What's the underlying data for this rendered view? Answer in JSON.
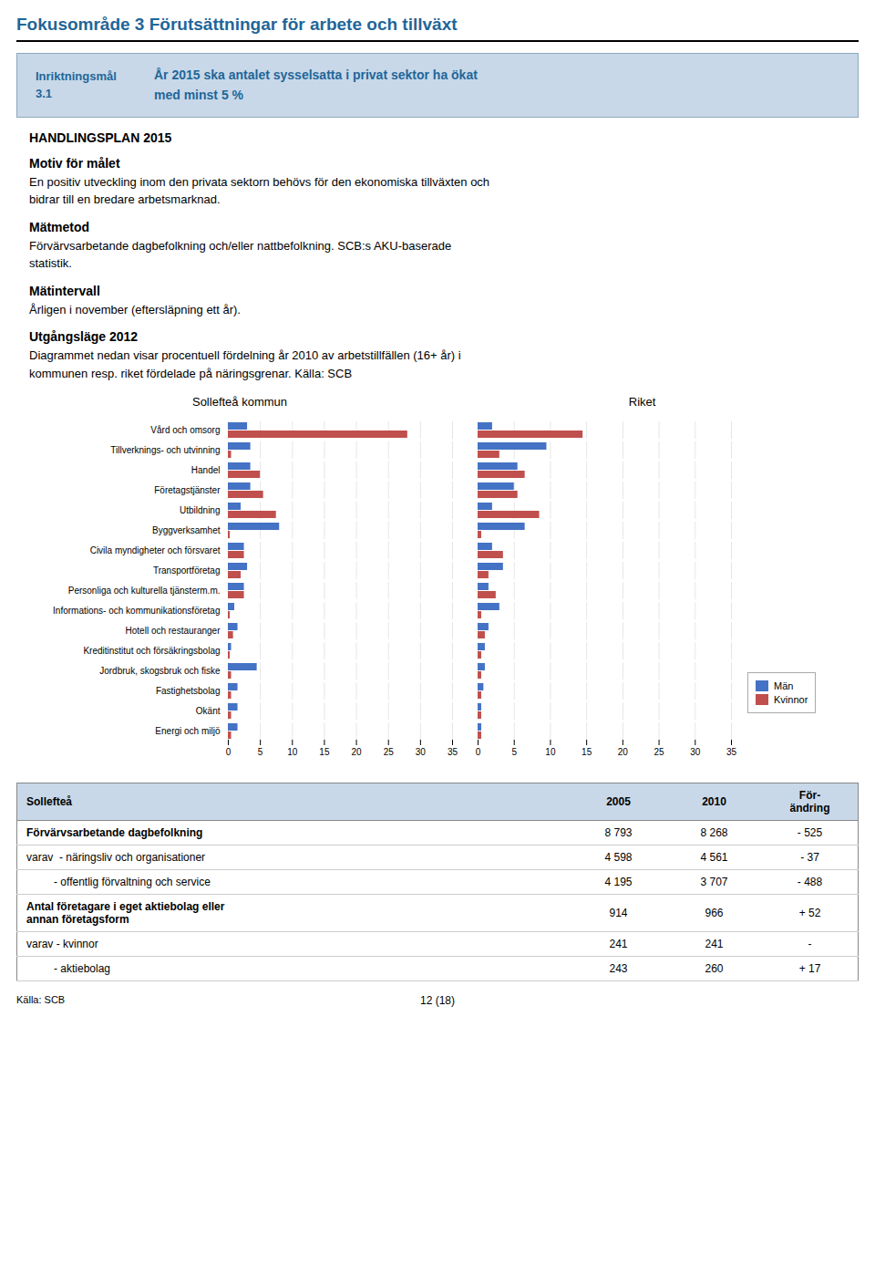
{
  "title": "Fokusområde 3  Förutsättningar för arbete och tillväxt",
  "title_color": "#1F6699",
  "header": {
    "label_lines": [
      "Inriktningsmål",
      "3.1"
    ],
    "text": "År 2015 ska antalet sysselsatta i privat sektor ha ökat\nmed minst 5 %",
    "color": "#C8D8E8",
    "border_color": "#8AAABB"
  },
  "sections": [
    {
      "title": "HANDLINGSPLAN  2015"
    },
    {
      "title": "Motiv för målet",
      "text": "En positiv utveckling inom den privata sektorn behövs för den ekonomiska tillväxten och\nbidrar till en bredare arbetsmarknad."
    },
    {
      "title": "Mätmetod",
      "text": "Förvärvsarbetande dagbefolkning och/eller nattbefolkning. SCB:s AKU-baserade\nstatistik."
    },
    {
      "title": "Mätintervall",
      "text": "Årligen i november (eftersläpning ett år)."
    },
    {
      "title": "Utgångsläge 2012",
      "text": "Diagrammet nedan visar procentuell fördelning år 2010 av arbetstillfällen (16+ år) i\nkommunen resp. riket fördelade på näringsgrenar. Källa: SCB"
    }
  ],
  "chart_data": [
    {
      "type": "bar",
      "orientation": "horizontal",
      "title": "Sollefteå kommun",
      "categories": [
        "Vård och omsorg",
        "Tillverknings- och utvinning",
        "Handel",
        "Företagstjänster",
        "Utbildning",
        "Byggverksamhet",
        "Civila myndigheter och försvaret",
        "Transportföretag",
        "Personliga och kulturella tjänsterm.m.",
        "Informations- och kommunikationsföretag",
        "Hotell och restauranger",
        "Kreditinstitut och försäkringsbolag",
        "Jordbruk, skogsbruk och fiske",
        "Fastighetsbolag",
        "Okänt",
        "Energi och miljö"
      ],
      "series": [
        {
          "name": "Män",
          "color": "#4472C4",
          "values": [
            3.0,
            3.5,
            3.5,
            3.5,
            2.0,
            8.0,
            2.5,
            3.0,
            2.5,
            1.0,
            1.5,
            0.5,
            4.5,
            1.5,
            1.5,
            1.5
          ]
        },
        {
          "name": "Kvinnor",
          "color": "#C0504D",
          "values": [
            28.0,
            0.5,
            5.0,
            5.5,
            7.5,
            0.3,
            2.5,
            2.0,
            2.5,
            0.3,
            0.8,
            0.3,
            0.5,
            0.5,
            0.5,
            0.5
          ]
        }
      ],
      "xlim": [
        0,
        35
      ],
      "xticks": [
        0,
        5,
        10,
        15,
        20,
        25,
        30,
        35
      ],
      "grid": true
    },
    {
      "type": "bar",
      "orientation": "horizontal",
      "title": "Riket",
      "categories": [
        "Vård och omsorg",
        "Tillverknings- och utvinning",
        "Handel",
        "Företagstjänster",
        "Utbildning",
        "Byggverksamhet",
        "Civila myndigheter och försvaret",
        "Transportföretag",
        "Personliga och kulturella tjänsterm.m.",
        "Informations- och kommunikationsföretag",
        "Hotell och restauranger",
        "Kreditinstitut och försäkringsbolag",
        "Jordbruk, skogsbruk och fiske",
        "Fastighetsbolag",
        "Okänt",
        "Energi och miljö"
      ],
      "series": [
        {
          "name": "Män",
          "color": "#4472C4",
          "values": [
            2.0,
            9.5,
            5.5,
            5.0,
            2.0,
            6.5,
            2.0,
            3.5,
            1.5,
            3.0,
            1.5,
            1.0,
            1.0,
            0.8,
            0.5,
            0.5
          ]
        },
        {
          "name": "Kvinnor",
          "color": "#C0504D",
          "values": [
            14.5,
            3.0,
            6.5,
            5.5,
            8.5,
            0.5,
            3.5,
            1.5,
            2.5,
            0.5,
            1.0,
            0.5,
            0.5,
            0.5,
            0.5,
            0.5
          ]
        }
      ],
      "xlim": [
        0,
        35
      ],
      "xticks": [
        0,
        5,
        10,
        15,
        20,
        25,
        30,
        35
      ],
      "grid": true,
      "tick_labels": "x",
      "legend": "right"
    }
  ],
  "table": {
    "headers": [
      "Sollefteå",
      "2005",
      "2010",
      "För-\nändring"
    ],
    "rows": [
      {
        "label": "Förvärvsarbetande dagbefolkning",
        "values": [
          "8 793",
          "8 268",
          "- 525"
        ],
        "bold": true
      },
      {
        "label": "varav  - näringsliv och organisationer",
        "values": [
          "4 598",
          "4 561",
          "- 37"
        ],
        "bold": false
      },
      {
        "label": "         - offentlig förvaltning och service",
        "values": [
          "4 195",
          "3 707",
          "- 488"
        ],
        "bold": false
      },
      {
        "label": "Antal företagare i eget aktiebolag eller\nannan företagsform",
        "values": [
          "914",
          "966",
          "+ 52"
        ],
        "bold": true
      },
      {
        "label": "varav - kvinnor",
        "values": [
          "241",
          "241",
          "-"
        ],
        "bold": false
      },
      {
        "label": "         - aktiebolag",
        "values": [
          "243",
          "260",
          "+ 17"
        ],
        "bold": false
      }
    ]
  },
  "footer": "Källa: SCB",
  "page_number": "12 (18)"
}
